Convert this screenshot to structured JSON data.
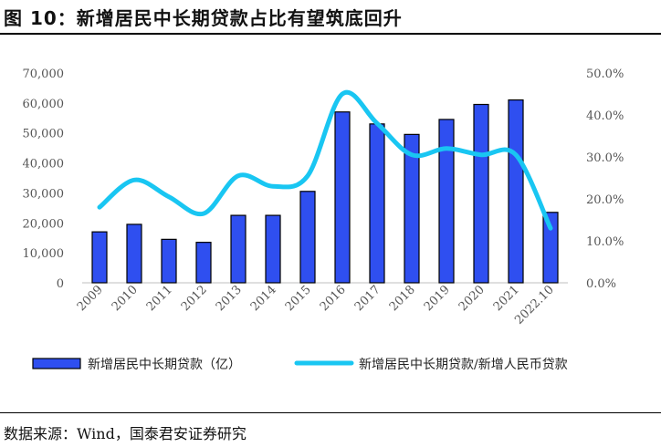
{
  "header": {
    "title": "图 10：新增居民中长期贷款占比有望筑底回升"
  },
  "footer": {
    "source": "数据来源：Wind，国泰君安证券研究"
  },
  "colors": {
    "bar": "#2f4ff0",
    "bar_edge": "#000000",
    "line": "#19c6f2"
  },
  "chart_data": {
    "type": "bar",
    "categories": [
      "2009",
      "2010",
      "2011",
      "2012",
      "2013",
      "2014",
      "2015",
      "2016",
      "2017",
      "2018",
      "2019",
      "2020",
      "2021",
      "2022.10"
    ],
    "series": [
      {
        "name": "新增居民中长期贷款（亿）",
        "type": "bar",
        "axis": "left",
        "values": [
          17000,
          19500,
          14500,
          13500,
          22500,
          22500,
          30500,
          57000,
          53000,
          49500,
          54500,
          59500,
          61000,
          23500
        ]
      },
      {
        "name": "新增居民中长期贷款/新增人民币贷款",
        "type": "line",
        "axis": "right",
        "values": [
          18,
          24.5,
          20.5,
          16.5,
          25.5,
          23,
          25.5,
          45,
          38,
          30.5,
          32,
          30.5,
          30.5,
          13
        ]
      }
    ],
    "left_axis": {
      "min": 0,
      "max": 70000,
      "step": 10000,
      "tick_labels": [
        "0",
        "10,000",
        "20,000",
        "30,000",
        "40,000",
        "50,000",
        "60,000",
        "70,000"
      ]
    },
    "right_axis": {
      "min": 0,
      "max": 50,
      "step": 10,
      "tick_labels": [
        "0.0%",
        "10.0%",
        "20.0%",
        "30.0%",
        "40.0%",
        "50.0%"
      ]
    },
    "grid": false,
    "legend_position": "bottom"
  }
}
